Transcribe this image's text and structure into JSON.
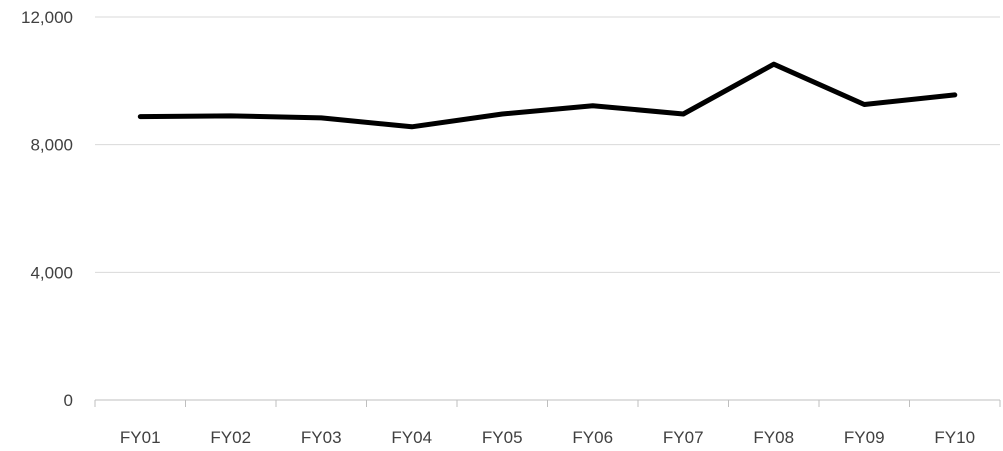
{
  "chart_data": {
    "type": "line",
    "title": "",
    "xlabel": "",
    "ylabel": "",
    "categories": [
      "FY01",
      "FY02",
      "FY03",
      "FY04",
      "FY05",
      "FY06",
      "FY07",
      "FY08",
      "FY09",
      "FY10"
    ],
    "series": [
      {
        "values": [
          8880,
          8900,
          8840,
          8560,
          8960,
          9220,
          8960,
          10520,
          9260,
          9560
        ]
      }
    ],
    "ylim": [
      0,
      12000
    ],
    "yticks": [
      0,
      4000,
      8000,
      12000
    ],
    "ytick_labels": [
      "0",
      "4,000",
      "8,000",
      "12,000"
    ],
    "grid": true,
    "legend": "none",
    "colors": {
      "line": "#000000",
      "grid": "#d9d9d9",
      "axis": "#bfbfbf",
      "text": "#404040"
    }
  }
}
